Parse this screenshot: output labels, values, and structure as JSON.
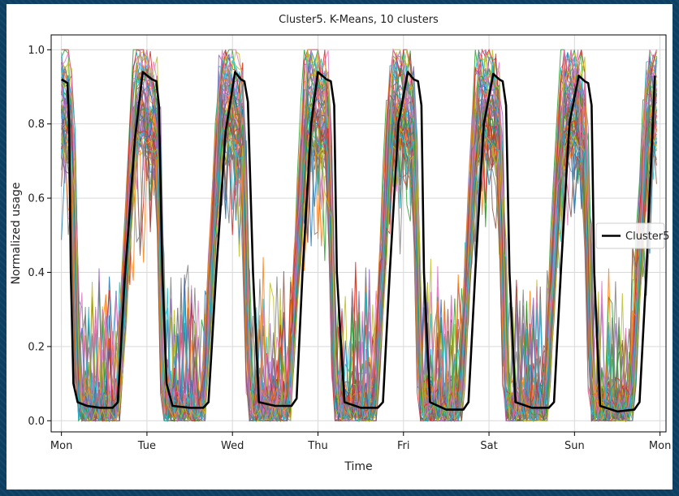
{
  "chart_data": {
    "type": "line",
    "title": "Cluster5. K-Means, 10 clusters",
    "xlabel": "Time",
    "ylabel": "Normalized usage",
    "x_ticks": [
      "Mon",
      "Tue",
      "Wed",
      "Thu",
      "Fri",
      "Sat",
      "Sun",
      "Mon"
    ],
    "y_ticks": [
      "0.0",
      "0.2",
      "0.4",
      "0.6",
      "0.8",
      "1.0"
    ],
    "ylim": [
      -0.03,
      1.04
    ],
    "xlim": [
      -0.12,
      7.07
    ],
    "grid": true,
    "legend": {
      "position": "center-right",
      "entries": [
        "Cluster5"
      ]
    },
    "series": [
      {
        "name": "Cluster5",
        "color": "#000000",
        "x": [
          0.0,
          0.04,
          0.07,
          0.09,
          0.11,
          0.14,
          0.19,
          0.3,
          0.45,
          0.6,
          0.66,
          0.74,
          0.86,
          0.95,
          1.06,
          1.11,
          1.14,
          1.18,
          1.23,
          1.3,
          1.5,
          1.66,
          1.72,
          1.81,
          1.92,
          2.03,
          2.1,
          2.14,
          2.18,
          2.24,
          2.31,
          2.5,
          2.69,
          2.75,
          2.82,
          2.92,
          3.0,
          3.1,
          3.15,
          3.19,
          3.22,
          3.31,
          3.5,
          3.7,
          3.76,
          3.84,
          3.94,
          4.05,
          4.12,
          4.17,
          4.21,
          4.24,
          4.31,
          4.5,
          4.7,
          4.76,
          4.84,
          4.94,
          5.05,
          5.12,
          5.16,
          5.2,
          5.24,
          5.31,
          5.5,
          5.7,
          5.76,
          5.84,
          5.94,
          6.05,
          6.12,
          6.16,
          6.2,
          6.23,
          6.3,
          6.5,
          6.7,
          6.76,
          6.84,
          6.94
        ],
        "values": [
          0.92,
          0.915,
          0.91,
          0.8,
          0.4,
          0.1,
          0.05,
          0.04,
          0.035,
          0.035,
          0.05,
          0.38,
          0.76,
          0.94,
          0.92,
          0.915,
          0.85,
          0.4,
          0.1,
          0.04,
          0.035,
          0.035,
          0.05,
          0.4,
          0.78,
          0.94,
          0.92,
          0.915,
          0.86,
          0.4,
          0.05,
          0.04,
          0.04,
          0.06,
          0.4,
          0.8,
          0.94,
          0.92,
          0.915,
          0.85,
          0.4,
          0.05,
          0.035,
          0.035,
          0.05,
          0.4,
          0.8,
          0.94,
          0.92,
          0.915,
          0.85,
          0.4,
          0.05,
          0.03,
          0.03,
          0.05,
          0.4,
          0.8,
          0.935,
          0.92,
          0.915,
          0.85,
          0.4,
          0.05,
          0.035,
          0.035,
          0.05,
          0.4,
          0.8,
          0.93,
          0.915,
          0.91,
          0.85,
          0.4,
          0.04,
          0.025,
          0.03,
          0.05,
          0.4,
          0.93
        ]
      }
    ],
    "background_series": {
      "count": 60,
      "palette": [
        "#1f77b4",
        "#ff7f0e",
        "#2ca02c",
        "#d62728",
        "#9467bd",
        "#8c564b",
        "#e377c2",
        "#7f7f7f",
        "#bcbd22",
        "#17becf"
      ]
    }
  }
}
